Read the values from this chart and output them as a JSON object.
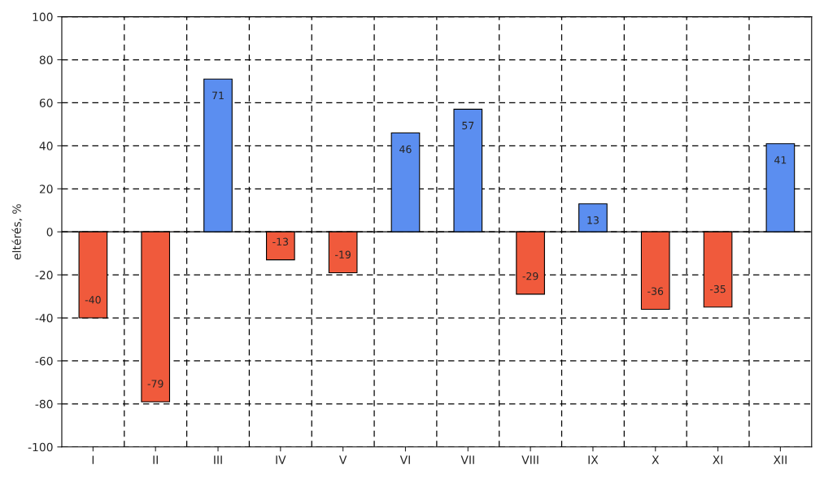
{
  "chart_data": {
    "type": "bar",
    "ylabel": "eltérés, %",
    "categories": [
      "I",
      "II",
      "III",
      "IV",
      "V",
      "VI",
      "VII",
      "VIII",
      "IX",
      "X",
      "XI",
      "XII"
    ],
    "values": [
      -40,
      -79,
      71,
      -13,
      -19,
      46,
      57,
      -29,
      13,
      -36,
      -35,
      41
    ],
    "colors": [
      "#f05a3c",
      "#f05a3c",
      "#5b8ef0",
      "#f05a3c",
      "#f05a3c",
      "#5b8ef0",
      "#5b8ef0",
      "#f05a3c",
      "#5b8ef0",
      "#f05a3c",
      "#f05a3c",
      "#5b8ef0"
    ],
    "ylim": [
      -100,
      100
    ],
    "yticks": [
      -100,
      -80,
      -60,
      -40,
      -20,
      0,
      20,
      40,
      60,
      80,
      100
    ],
    "grid": true,
    "data_labels": true
  }
}
